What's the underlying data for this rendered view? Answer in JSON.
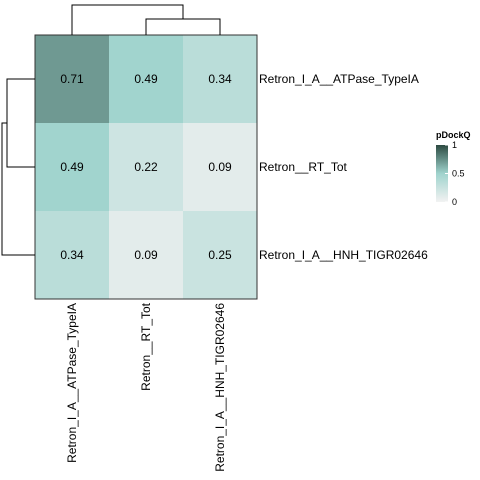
{
  "chart_data": {
    "type": "heatmap",
    "rows": [
      "Retron_I_A__ATPase_TypeIA",
      "Retron__RT_Tot",
      "Retron_I_A__HNH_TIGR02646"
    ],
    "columns": [
      "Retron_I_A__ATPase_TypeIA",
      "Retron__RT_Tot",
      "Retron_I_A__HNH_TIGR02646"
    ],
    "values": [
      [
        0.71,
        0.49,
        0.34
      ],
      [
        0.49,
        0.22,
        0.09
      ],
      [
        0.34,
        0.09,
        0.25
      ]
    ],
    "value_labels": [
      [
        "0.71",
        "0.49",
        "0.34"
      ],
      [
        "0.49",
        "0.22",
        "0.09"
      ],
      [
        "0.34",
        "0.09",
        "0.25"
      ]
    ],
    "color_scale": {
      "min": 0,
      "max": 1,
      "low_color": "#f2f2f2",
      "mid_color": "#9fd3cd",
      "high_color": "#2c4a41"
    },
    "legend": {
      "title": "pDockQ",
      "ticks": [
        "0",
        "0.5",
        "1"
      ],
      "tick_values": [
        0,
        0.5,
        1
      ],
      "placement": "right"
    },
    "dendrograms": [
      "top",
      "left"
    ]
  }
}
